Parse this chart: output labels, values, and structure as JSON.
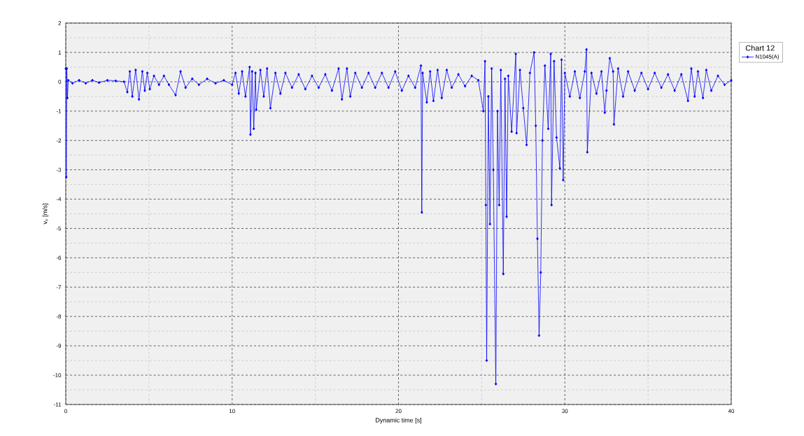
{
  "chart_data": {
    "type": "line",
    "xlabel": "Dynamic time [s]",
    "ylabel": "v$_{x}$ [m/s]",
    "legend_title": "Chart 12",
    "xlim": [
      0,
      40
    ],
    "ylim": [
      -11,
      2
    ],
    "xticks": [
      0,
      10,
      20,
      30,
      40
    ],
    "yticks": [
      -11,
      -10,
      -9,
      -8,
      -7,
      -6,
      -5,
      -4,
      -3,
      -2,
      -1,
      0,
      1,
      2
    ],
    "grid": true,
    "legend": "top right",
    "marker": "diamond",
    "line_style": "solid",
    "series": [
      {
        "name": "N1045(A)",
        "color": "#0000ff",
        "x": [
          0,
          0.03,
          0.06,
          0.1,
          0.15,
          0.4,
          0.8,
          1.2,
          1.6,
          2.0,
          2.5,
          3.0,
          3.5,
          3.7,
          3.85,
          4.0,
          4.2,
          4.4,
          4.6,
          4.75,
          4.9,
          5.05,
          5.3,
          5.6,
          5.9,
          6.2,
          6.6,
          6.9,
          7.2,
          7.6,
          8.0,
          8.5,
          9.0,
          9.5,
          10.0,
          10.2,
          10.4,
          10.6,
          10.8,
          11.05,
          11.1,
          11.2,
          11.3,
          11.4,
          11.45,
          11.7,
          11.9,
          12.1,
          12.3,
          12.6,
          12.9,
          13.2,
          13.6,
          14.0,
          14.4,
          14.8,
          15.2,
          15.6,
          16.0,
          16.4,
          16.6,
          16.9,
          17.1,
          17.4,
          17.8,
          18.2,
          18.6,
          19.0,
          19.4,
          19.8,
          20.2,
          20.6,
          21.0,
          21.35,
          21.4,
          21.45,
          21.7,
          21.9,
          22.1,
          22.35,
          22.6,
          22.9,
          23.2,
          23.6,
          24.0,
          24.4,
          24.8,
          25.1,
          25.2,
          25.25,
          25.3,
          25.4,
          25.5,
          25.6,
          25.7,
          25.85,
          25.95,
          26.05,
          26.15,
          26.3,
          26.4,
          26.5,
          26.6,
          26.8,
          27.05,
          27.1,
          27.3,
          27.5,
          27.7,
          27.9,
          28.15,
          28.25,
          28.35,
          28.45,
          28.55,
          28.65,
          28.8,
          29.0,
          29.15,
          29.2,
          29.35,
          29.5,
          29.7,
          29.8,
          29.9,
          30.0,
          30.3,
          30.6,
          30.9,
          31.2,
          31.3,
          31.35,
          31.6,
          31.9,
          32.2,
          32.4,
          32.5,
          32.7,
          32.9,
          32.95,
          33.2,
          33.5,
          33.8,
          34.2,
          34.6,
          35.0,
          35.4,
          35.8,
          36.2,
          36.6,
          37.0,
          37.4,
          37.6,
          37.8,
          38.0,
          38.3,
          38.5,
          38.8,
          39.2,
          39.6,
          40.0
        ],
        "values": [
          0.45,
          -3.25,
          0.45,
          -0.55,
          0.05,
          -0.05,
          0.05,
          -0.05,
          0.05,
          -0.03,
          0.05,
          0.03,
          0.0,
          -0.35,
          0.35,
          -0.5,
          0.4,
          -0.6,
          0.35,
          -0.3,
          0.3,
          -0.25,
          0.2,
          -0.1,
          0.2,
          -0.1,
          -0.45,
          0.35,
          -0.2,
          0.1,
          -0.1,
          0.1,
          -0.05,
          0.05,
          -0.1,
          0.3,
          -0.4,
          0.35,
          -0.5,
          0.5,
          -1.8,
          0.35,
          -1.6,
          0.3,
          -0.95,
          0.4,
          -0.5,
          0.45,
          -0.9,
          0.3,
          -0.4,
          0.3,
          -0.2,
          0.25,
          -0.25,
          0.2,
          -0.2,
          0.25,
          -0.3,
          0.45,
          -0.6,
          0.45,
          -0.5,
          0.3,
          -0.2,
          0.3,
          -0.2,
          0.3,
          -0.2,
          0.35,
          -0.3,
          0.2,
          -0.2,
          0.55,
          -4.45,
          0.3,
          -0.7,
          0.35,
          -0.65,
          0.4,
          -0.55,
          0.4,
          -0.2,
          0.25,
          -0.15,
          0.2,
          0.05,
          -1.0,
          0.7,
          -4.2,
          -9.5,
          -0.5,
          -4.85,
          0.45,
          -3.0,
          -10.3,
          -1.0,
          -4.2,
          0.4,
          -6.55,
          0.1,
          -4.6,
          0.2,
          -1.7,
          0.95,
          -1.75,
          0.4,
          -0.9,
          -2.15,
          0.3,
          1.0,
          -1.5,
          -5.35,
          -8.65,
          -6.5,
          -2.0,
          0.55,
          -1.6,
          0.95,
          -4.2,
          0.7,
          -1.9,
          -2.95,
          0.75,
          -3.35,
          0.3,
          -0.5,
          0.35,
          -0.55,
          0.35,
          1.1,
          -2.4,
          0.3,
          -0.4,
          0.35,
          -1.05,
          -0.3,
          0.8,
          0.35,
          -1.45,
          0.45,
          -0.5,
          0.35,
          -0.3,
          0.3,
          -0.25,
          0.3,
          -0.2,
          0.25,
          -0.3,
          0.25,
          -0.65,
          0.45,
          -0.5,
          0.35,
          -0.55,
          0.4,
          -0.3,
          0.2,
          -0.1,
          0.05
        ]
      }
    ]
  }
}
